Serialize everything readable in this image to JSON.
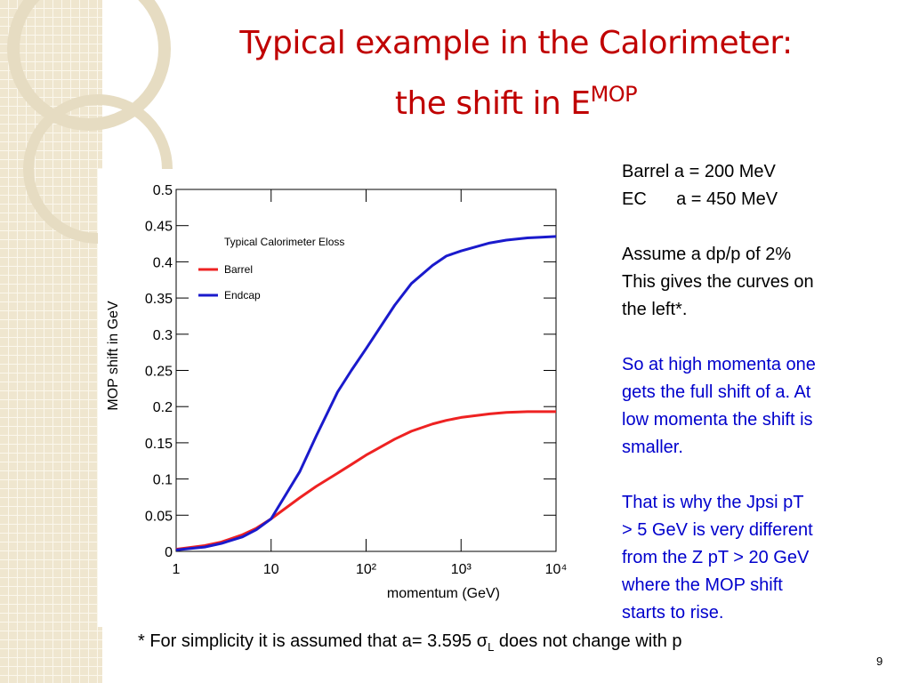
{
  "slide": {
    "title_line1": "Typical example in the Calorimeter:",
    "title_line2": "the shift in E",
    "title_superscript": "MOP",
    "notes": [
      {
        "text": "Barrel a = 200 MeV",
        "color": "#000000"
      },
      {
        "text": "EC      a = 450 MeV",
        "color": "#000000"
      },
      {
        "text": "",
        "color": "#000000"
      },
      {
        "text": "Assume a dp/p of 2%",
        "color": "#000000"
      },
      {
        "text": "This gives the curves on",
        "color": "#000000"
      },
      {
        "text": "the left*.",
        "color": "#000000"
      },
      {
        "text": "",
        "color": "#000000"
      },
      {
        "text": "So at high momenta one",
        "color": "#0000cc"
      },
      {
        "text": "gets the full shift of a. At",
        "color": "#0000cc"
      },
      {
        "text": "low momenta the shift is",
        "color": "#0000cc"
      },
      {
        "text": "smaller.",
        "color": "#0000cc"
      },
      {
        "text": "",
        "color": "#0000cc"
      },
      {
        "text": "That is why the Jpsi pT",
        "color": "#0000cc"
      },
      {
        "text": "> 5 GeV is very different",
        "color": "#0000cc"
      },
      {
        "text": "from the Z pT > 20 GeV",
        "color": "#0000cc"
      },
      {
        "text": "where the MOP shift",
        "color": "#0000cc"
      },
      {
        "text": "starts to rise.",
        "color": "#0000cc"
      }
    ],
    "footnote_before": "* For simplicity it is assumed that a= 3.595 σ",
    "footnote_subscript": "L",
    "footnote_after": " does not change with p",
    "page_number": "9"
  },
  "chart_data": {
    "type": "line",
    "legend_title": "Typical Calorimeter Eloss",
    "x_label": "momentum (GeV)",
    "y_label": "MOP shift in GeV",
    "x_log": true,
    "x": [
      1,
      2,
      3,
      5,
      7,
      10,
      20,
      30,
      50,
      70,
      100,
      200,
      300,
      500,
      700,
      1000,
      2000,
      3000,
      5000,
      7000,
      10000
    ],
    "series": [
      {
        "name": "Barrel",
        "color": "#ee2222",
        "values": [
          0.003,
          0.008,
          0.013,
          0.023,
          0.032,
          0.045,
          0.074,
          0.09,
          0.108,
          0.12,
          0.133,
          0.155,
          0.166,
          0.176,
          0.181,
          0.185,
          0.19,
          0.192,
          0.193,
          0.193,
          0.193
        ]
      },
      {
        "name": "Endcap",
        "color": "#1a1acc",
        "values": [
          0.002,
          0.006,
          0.011,
          0.02,
          0.03,
          0.045,
          0.11,
          0.16,
          0.22,
          0.25,
          0.28,
          0.34,
          0.37,
          0.395,
          0.408,
          0.415,
          0.426,
          0.43,
          0.433,
          0.434,
          0.435
        ]
      }
    ],
    "xlim": [
      1,
      10000
    ],
    "xticks": [
      1,
      10,
      {
        "value": 100,
        "label": "10²"
      },
      {
        "value": 1000,
        "label": "10³"
      },
      {
        "value": 10000,
        "label": "10⁴"
      }
    ],
    "ylim": [
      0,
      0.5
    ],
    "yticks": [
      0,
      0.05,
      0.1,
      0.15,
      0.2,
      0.25,
      0.3,
      0.35,
      0.4,
      0.45,
      0.5
    ]
  }
}
